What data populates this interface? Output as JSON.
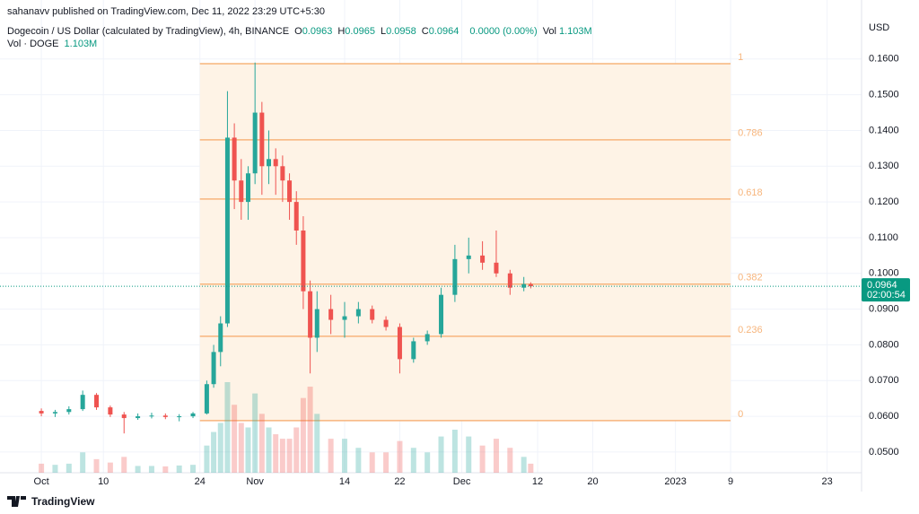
{
  "header": {
    "published": "sahanavv published on TradingView.com, Dec 11, 2022 23:29 UTC+5:30",
    "symbol": "Dogecoin / US Dollar (calculated by TradingView), 4h, BINANCE",
    "ohlc": [
      {
        "key": "O",
        "value": "0.0963"
      },
      {
        "key": "H",
        "value": "0.0965"
      },
      {
        "key": "L",
        "value": "0.0958"
      },
      {
        "key": "C",
        "value": "0.0964"
      }
    ],
    "change": "0.0000 (0.00%)",
    "vol_key": "Vol",
    "vol_value": "1.103M",
    "vol_line": "Vol · DOGE",
    "vol_line_value": "1.103M"
  },
  "footer": "TradingView",
  "chart_data": {
    "type": "candlestick",
    "currency": "USD",
    "x": [
      "2022-10-01",
      "2022-10-03",
      "2022-10-05",
      "2022-10-07",
      "2022-10-09",
      "2022-10-11",
      "2022-10-13",
      "2022-10-15",
      "2022-10-17",
      "2022-10-19",
      "2022-10-21",
      "2022-10-23",
      "2022-10-25",
      "2022-10-26",
      "2022-10-27",
      "2022-10-28",
      "2022-10-29",
      "2022-10-30",
      "2022-10-31",
      "2022-11-01",
      "2022-11-02",
      "2022-11-03",
      "2022-11-04",
      "2022-11-05",
      "2022-11-06",
      "2022-11-07",
      "2022-11-08",
      "2022-11-09",
      "2022-11-10",
      "2022-11-12",
      "2022-11-14",
      "2022-11-16",
      "2022-11-18",
      "2022-11-20",
      "2022-11-22",
      "2022-11-24",
      "2022-11-26",
      "2022-11-28",
      "2022-11-30",
      "2022-12-02",
      "2022-12-04",
      "2022-12-06",
      "2022-12-08",
      "2022-12-10",
      "2022-12-11"
    ],
    "open": [
      0.0615,
      0.0608,
      0.0612,
      0.062,
      0.066,
      0.0625,
      0.0605,
      0.0595,
      0.06,
      0.0602,
      0.0598,
      0.06,
      0.0608,
      0.069,
      0.078,
      0.086,
      0.138,
      0.126,
      0.12,
      0.128,
      0.145,
      0.13,
      0.132,
      0.13,
      0.126,
      0.12,
      0.112,
      0.095,
      0.082,
      0.09,
      0.087,
      0.088,
      0.09,
      0.087,
      0.085,
      0.076,
      0.081,
      0.083,
      0.094,
      0.104,
      0.105,
      0.103,
      0.1,
      0.096,
      0.097
    ],
    "high": [
      0.0622,
      0.0618,
      0.0628,
      0.0672,
      0.0665,
      0.063,
      0.0612,
      0.0608,
      0.061,
      0.0608,
      0.0606,
      0.0612,
      0.07,
      0.08,
      0.088,
      0.151,
      0.142,
      0.132,
      0.13,
      0.159,
      0.148,
      0.14,
      0.135,
      0.133,
      0.128,
      0.123,
      0.116,
      0.098,
      0.095,
      0.094,
      0.092,
      0.092,
      0.091,
      0.088,
      0.086,
      0.082,
      0.084,
      0.096,
      0.108,
      0.11,
      0.109,
      0.112,
      0.101,
      0.099,
      0.0975
    ],
    "low": [
      0.06,
      0.0598,
      0.0605,
      0.0615,
      0.0618,
      0.0598,
      0.0552,
      0.059,
      0.0594,
      0.0592,
      0.0586,
      0.0595,
      0.0605,
      0.068,
      0.074,
      0.085,
      0.118,
      0.115,
      0.115,
      0.125,
      0.122,
      0.125,
      0.122,
      0.12,
      0.115,
      0.108,
      0.09,
      0.072,
      0.078,
      0.083,
      0.082,
      0.086,
      0.086,
      0.084,
      0.072,
      0.075,
      0.08,
      0.082,
      0.092,
      0.1,
      0.101,
      0.099,
      0.094,
      0.095,
      0.0958
    ],
    "close": [
      0.0608,
      0.0612,
      0.062,
      0.066,
      0.0625,
      0.0605,
      0.0595,
      0.06,
      0.0602,
      0.0598,
      0.06,
      0.0608,
      0.069,
      0.078,
      0.086,
      0.138,
      0.126,
      0.12,
      0.128,
      0.145,
      0.13,
      0.132,
      0.13,
      0.126,
      0.12,
      0.112,
      0.095,
      0.082,
      0.09,
      0.087,
      0.088,
      0.09,
      0.087,
      0.085,
      0.076,
      0.081,
      0.083,
      0.094,
      0.104,
      0.105,
      0.103,
      0.1,
      0.096,
      0.097,
      0.0964
    ],
    "volume": [
      40,
      35,
      40,
      90,
      60,
      45,
      70,
      30,
      30,
      28,
      32,
      35,
      120,
      180,
      220,
      400,
      300,
      220,
      200,
      350,
      260,
      200,
      170,
      150,
      150,
      200,
      330,
      380,
      260,
      150,
      150,
      110,
      90,
      90,
      140,
      110,
      90,
      160,
      190,
      160,
      120,
      150,
      110,
      70,
      40
    ],
    "volume_lim": [
      0,
      2000
    ],
    "up_color": "#26a69a",
    "down_color": "#ef5350",
    "xlim": [
      "2022-09-25",
      "2023-01-28"
    ],
    "xticks": [
      {
        "value": "2022-10-01",
        "label": "Oct"
      },
      {
        "value": "2022-10-10",
        "label": "10"
      },
      {
        "value": "2022-10-24",
        "label": "24"
      },
      {
        "value": "2022-11-01",
        "label": "Nov"
      },
      {
        "value": "2022-11-14",
        "label": "14"
      },
      {
        "value": "2022-11-22",
        "label": "22"
      },
      {
        "value": "2022-12-01",
        "label": "Dec"
      },
      {
        "value": "2022-12-12",
        "label": "12"
      },
      {
        "value": "2022-12-20",
        "label": "20"
      },
      {
        "value": "2023-01-01",
        "label": "2023"
      },
      {
        "value": "2023-01-09",
        "label": "9"
      },
      {
        "value": "2023-01-23",
        "label": "23"
      }
    ],
    "ylim": [
      0.0442,
      0.171
    ],
    "yticks": [
      {
        "value": 0.05,
        "label": "0.0500"
      },
      {
        "value": 0.06,
        "label": "0.0600"
      },
      {
        "value": 0.07,
        "label": "0.0700"
      },
      {
        "value": 0.08,
        "label": "0.0800"
      },
      {
        "value": 0.09,
        "label": "0.0900"
      },
      {
        "value": 0.1,
        "label": "0.1000"
      },
      {
        "value": 0.11,
        "label": "0.1100"
      },
      {
        "value": 0.12,
        "label": "0.1200"
      },
      {
        "value": 0.13,
        "label": "0.1300"
      },
      {
        "value": 0.14,
        "label": "0.1400"
      },
      {
        "value": 0.15,
        "label": "0.1500"
      },
      {
        "value": 0.16,
        "label": "0.1600"
      }
    ],
    "grid": true,
    "last_price": {
      "value": 0.0964,
      "countdown": "02:00:54",
      "color": "#089981"
    },
    "fib": {
      "start": "2022-10-24",
      "end": "2023-01-09",
      "color": "#f7b57c",
      "fill": "#fef3e6",
      "levels": [
        {
          "ratio": 1,
          "price": 0.1587
        },
        {
          "ratio": 0.786,
          "price": 0.1374
        },
        {
          "ratio": 0.618,
          "price": 0.1208
        },
        {
          "ratio": 0.382,
          "price": 0.097
        },
        {
          "ratio": 0.236,
          "price": 0.0824
        },
        {
          "ratio": 0,
          "price": 0.0588
        }
      ]
    }
  }
}
